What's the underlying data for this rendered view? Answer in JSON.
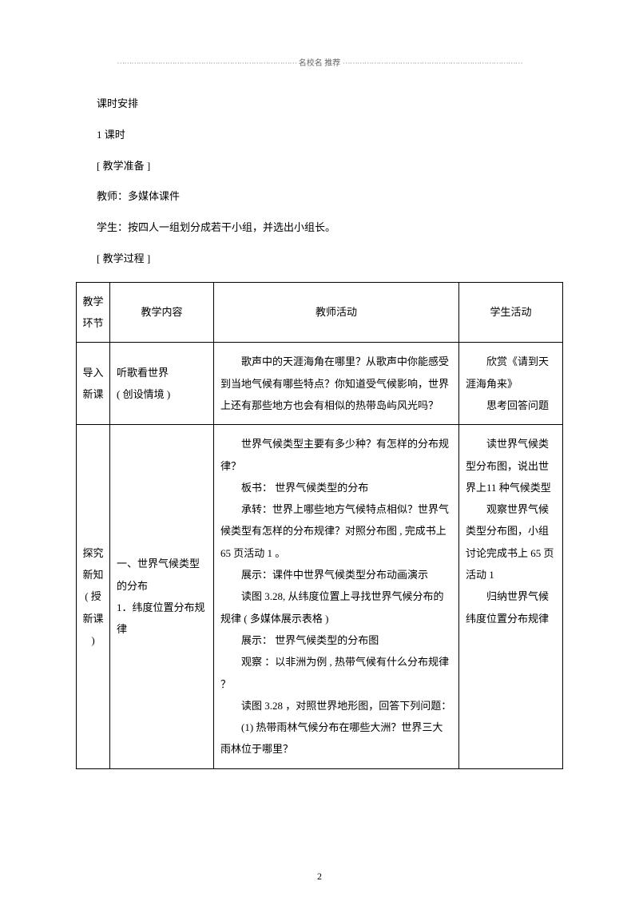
{
  "header": {
    "dots_left": "⋯⋯⋯⋯⋯⋯⋯⋯⋯⋯⋯⋯⋯⋯⋯⋯⋯⋯⋯⋯⋯⋯⋯⋯⋯",
    "label": "名校名 推荐",
    "dots_right": "⋯⋯⋯⋯⋯⋯⋯⋯⋯⋯⋯⋯⋯⋯⋯⋯⋯⋯⋯⋯⋯⋯⋯⋯⋯"
  },
  "pre_paragraphs": [
    "课时安排",
    "1 课时",
    "[ 教学准备 ]",
    "教师：多媒体课件",
    "学生：按四人一组划分成若干小组，并选出小组长。",
    "[ 教学过程 ]"
  ],
  "table": {
    "colors": {
      "border": "#000000"
    },
    "header_row": {
      "phase": "教学环节",
      "content": "教学内容",
      "teacher": "教师活动",
      "student": "学生活动"
    },
    "rows": [
      {
        "phase": "导入新课",
        "content_lines": [
          "听歌看世界",
          "( 创设情境 )"
        ],
        "teacher_lines": [
          "　　歌声中的天涯海角在哪里？从歌声中你能感受到当地气候有哪些特点？你知道受气候影响，世界上还有那些地方也会有相似的热带岛屿风光吗？"
        ],
        "student_lines": [
          "　　欣赏《请到天涯海角来》",
          "　　思考回答问题"
        ]
      },
      {
        "phase": "探究新知 ( 授新课 )",
        "content_lines": [
          "一、世界气候类型的分布",
          "1．纬度位置分布规律"
        ],
        "teacher_lines": [
          "　　世界气候类型主要有多少种？有怎样的分布规律？",
          "　　板书： 世界气候类型的分布",
          "　　承转：世界上哪些地方气候特点相似？世界气候类型有怎样的分布规律？对照分布图 , 完成书上  65 页活动 1 。",
          "　　展示：课件中世界气候类型分布动画演示",
          "　　读图 3.28,  从纬度位置上寻找世界气候分布的规律 ( 多媒体展示表格  )",
          "　　展示： 世界气候类型的分布图",
          "　　观察 ：以非洲为例 , 热带气候有什么分布规律 ？",
          "　　读图 3.28 ，对照世界地形图，回答下列问题：",
          "　　(1) 热带雨林气候分布在哪些大洲？世界三大雨林位于哪里？"
        ],
        "student_lines": [
          "　　读世界气候类型分布图，说出世界上11 种气候类型",
          "　　观察世界气候类型分布图，小组讨论完成书上 65 页活动 1",
          "",
          "",
          "",
          "",
          "",
          "　　归纳世界气候纬度位置分布规律"
        ]
      }
    ]
  },
  "page_number": "2"
}
